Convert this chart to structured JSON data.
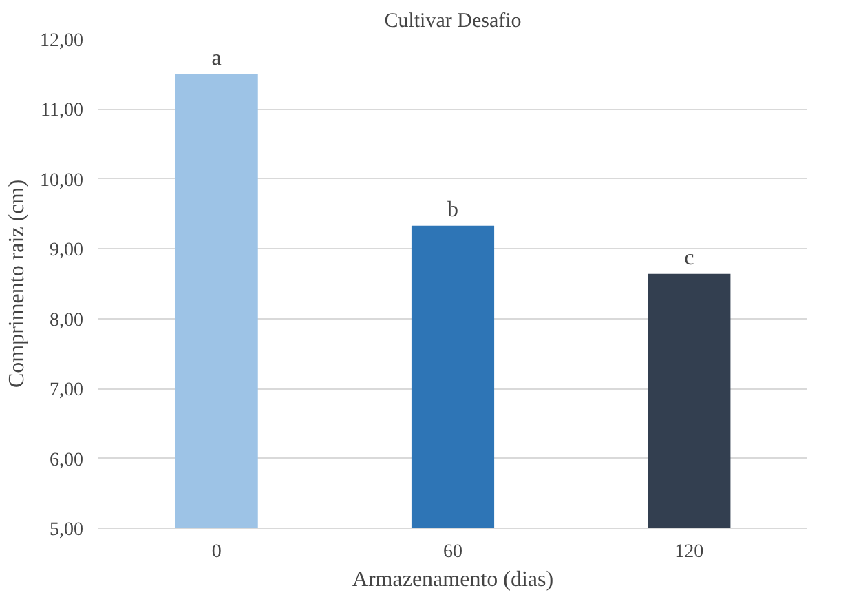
{
  "chart_data": {
    "type": "bar",
    "title": "Cultivar Desafio",
    "xlabel": "Armazenamento (dias)",
    "ylabel": "Comprimento raiz (cm)",
    "categories": [
      "0",
      "60",
      "120"
    ],
    "values": [
      11.5,
      9.33,
      8.64
    ],
    "colors": [
      "#9dc3e6",
      "#2e75b6",
      "#333f50"
    ],
    "ylim": [
      5,
      12
    ],
    "yticks": [
      {
        "value": 5,
        "label": "5,00"
      },
      {
        "value": 6,
        "label": "6,00"
      },
      {
        "value": 7,
        "label": "7,00"
      },
      {
        "value": 8,
        "label": "8,00"
      },
      {
        "value": 9,
        "label": "9,00"
      },
      {
        "value": 10,
        "label": "10,00"
      },
      {
        "value": 11,
        "label": "11,00"
      },
      {
        "value": 12,
        "label": "12,00"
      }
    ],
    "grid": "y",
    "annotations": [
      {
        "text": "a",
        "x": "0",
        "y": 11.5
      },
      {
        "text": "b",
        "x": "60",
        "y": 9.33
      },
      {
        "text": "c",
        "x": "120",
        "y": 8.64
      }
    ]
  }
}
